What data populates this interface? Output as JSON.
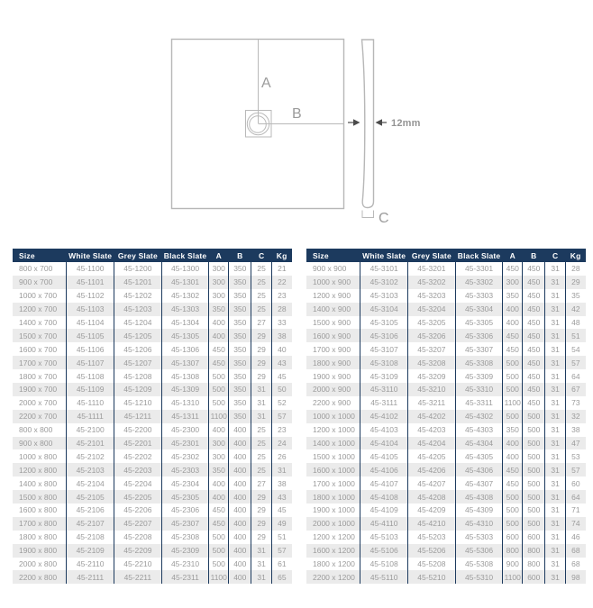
{
  "diagram": {
    "labels": {
      "a": "A",
      "b": "B",
      "c": "C",
      "thickness": "12mm"
    }
  },
  "colors": {
    "header_bg": "#1c3a5e",
    "header_text": "#ffffff",
    "body_text": "#9b9b9b",
    "row_stripe": "#ebebeb",
    "column_divider": "#1c3a5e",
    "diagram_line": "#b7b7b7",
    "diagram_label": "#9b9b9b",
    "arrow": "#4b4b4b"
  },
  "tables": {
    "headers": [
      "Size",
      "White Slate",
      "Grey Slate",
      "Black Slate",
      "A",
      "B",
      "C",
      "Kg"
    ],
    "left_rows": [
      [
        "800 x 700",
        "45-1100",
        "45-1200",
        "45-1300",
        "300",
        "350",
        "25",
        "21"
      ],
      [
        "900 x 700",
        "45-1101",
        "45-1201",
        "45-1301",
        "300",
        "350",
        "25",
        "22"
      ],
      [
        "1000 x 700",
        "45-1102",
        "45-1202",
        "45-1302",
        "300",
        "350",
        "25",
        "23"
      ],
      [
        "1200 x 700",
        "45-1103",
        "45-1203",
        "45-1303",
        "350",
        "350",
        "25",
        "28"
      ],
      [
        "1400 x 700",
        "45-1104",
        "45-1204",
        "45-1304",
        "400",
        "350",
        "27",
        "33"
      ],
      [
        "1500 x 700",
        "45-1105",
        "45-1205",
        "45-1305",
        "400",
        "350",
        "29",
        "38"
      ],
      [
        "1600 x 700",
        "45-1106",
        "45-1206",
        "45-1306",
        "450",
        "350",
        "29",
        "40"
      ],
      [
        "1700 x 700",
        "45-1107",
        "45-1207",
        "45-1307",
        "450",
        "350",
        "29",
        "43"
      ],
      [
        "1800 x 700",
        "45-1108",
        "45-1208",
        "45-1308",
        "500",
        "350",
        "29",
        "45"
      ],
      [
        "1900 x 700",
        "45-1109",
        "45-1209",
        "45-1309",
        "500",
        "350",
        "31",
        "50"
      ],
      [
        "2000 x 700",
        "45-1110",
        "45-1210",
        "45-1310",
        "500",
        "350",
        "31",
        "52"
      ],
      [
        "2200 x 700",
        "45-1111",
        "45-1211",
        "45-1311",
        "1100",
        "350",
        "31",
        "57"
      ],
      [
        "800 x 800",
        "45-2100",
        "45-2200",
        "45-2300",
        "400",
        "400",
        "25",
        "23"
      ],
      [
        "900 x 800",
        "45-2101",
        "45-2201",
        "45-2301",
        "300",
        "400",
        "25",
        "24"
      ],
      [
        "1000 x 800",
        "45-2102",
        "45-2202",
        "45-2302",
        "300",
        "400",
        "25",
        "26"
      ],
      [
        "1200 x 800",
        "45-2103",
        "45-2203",
        "45-2303",
        "350",
        "400",
        "25",
        "31"
      ],
      [
        "1400 x 800",
        "45-2104",
        "45-2204",
        "45-2304",
        "400",
        "400",
        "27",
        "38"
      ],
      [
        "1500 x 800",
        "45-2105",
        "45-2205",
        "45-2305",
        "400",
        "400",
        "29",
        "43"
      ],
      [
        "1600 x 800",
        "45-2106",
        "45-2206",
        "45-2306",
        "450",
        "400",
        "29",
        "45"
      ],
      [
        "1700 x 800",
        "45-2107",
        "45-2207",
        "45-2307",
        "450",
        "400",
        "29",
        "49"
      ],
      [
        "1800 x 800",
        "45-2108",
        "45-2208",
        "45-2308",
        "500",
        "400",
        "29",
        "51"
      ],
      [
        "1900 x 800",
        "45-2109",
        "45-2209",
        "45-2309",
        "500",
        "400",
        "31",
        "57"
      ],
      [
        "2000 x 800",
        "45-2110",
        "45-2210",
        "45-2310",
        "500",
        "400",
        "31",
        "61"
      ],
      [
        "2200 x 800",
        "45-2111",
        "45-2211",
        "45-2311",
        "1100",
        "400",
        "31",
        "65"
      ]
    ],
    "right_rows": [
      [
        "900 x 900",
        "45-3101",
        "45-3201",
        "45-3301",
        "450",
        "450",
        "31",
        "28"
      ],
      [
        "1000 x 900",
        "45-3102",
        "45-3202",
        "45-3302",
        "300",
        "450",
        "31",
        "29"
      ],
      [
        "1200 x 900",
        "45-3103",
        "45-3203",
        "45-3303",
        "350",
        "450",
        "31",
        "35"
      ],
      [
        "1400 x 900",
        "45-3104",
        "45-3204",
        "45-3304",
        "400",
        "450",
        "31",
        "42"
      ],
      [
        "1500 x 900",
        "45-3105",
        "45-3205",
        "45-3305",
        "400",
        "450",
        "31",
        "48"
      ],
      [
        "1600 x 900",
        "45-3106",
        "45-3206",
        "45-3306",
        "450",
        "450",
        "31",
        "51"
      ],
      [
        "1700 x 900",
        "45-3107",
        "45-3207",
        "45-3307",
        "450",
        "450",
        "31",
        "54"
      ],
      [
        "1800 x 900",
        "45-3108",
        "45-3208",
        "45-3308",
        "500",
        "450",
        "31",
        "57"
      ],
      [
        "1900 x 900",
        "45-3109",
        "45-3209",
        "45-3309",
        "500",
        "450",
        "31",
        "64"
      ],
      [
        "2000 x 900",
        "45-3110",
        "45-3210",
        "45-3310",
        "500",
        "450",
        "31",
        "67"
      ],
      [
        "2200 x 900",
        "45-3111",
        "45-3211",
        "45-3311",
        "1100",
        "450",
        "31",
        "73"
      ],
      [
        "1000 x 1000",
        "45-4102",
        "45-4202",
        "45-4302",
        "500",
        "500",
        "31",
        "32"
      ],
      [
        "1200 x 1000",
        "45-4103",
        "45-4203",
        "45-4303",
        "350",
        "500",
        "31",
        "38"
      ],
      [
        "1400 x 1000",
        "45-4104",
        "45-4204",
        "45-4304",
        "400",
        "500",
        "31",
        "47"
      ],
      [
        "1500 x 1000",
        "45-4105",
        "45-4205",
        "45-4305",
        "400",
        "500",
        "31",
        "53"
      ],
      [
        "1600 x 1000",
        "45-4106",
        "45-4206",
        "45-4306",
        "450",
        "500",
        "31",
        "57"
      ],
      [
        "1700 x 1000",
        "45-4107",
        "45-4207",
        "45-4307",
        "450",
        "500",
        "31",
        "60"
      ],
      [
        "1800 x 1000",
        "45-4108",
        "45-4208",
        "45-4308",
        "500",
        "500",
        "31",
        "64"
      ],
      [
        "1900 x 1000",
        "45-4109",
        "45-4209",
        "45-4309",
        "500",
        "500",
        "31",
        "71"
      ],
      [
        "2000 x 1000",
        "45-4110",
        "45-4210",
        "45-4310",
        "500",
        "500",
        "31",
        "74"
      ],
      [
        "1200 x 1200",
        "45-5103",
        "45-5203",
        "45-5303",
        "600",
        "600",
        "31",
        "46"
      ],
      [
        "1600 x 1200",
        "45-5106",
        "45-5206",
        "45-5306",
        "800",
        "800",
        "31",
        "68"
      ],
      [
        "1800 x 1200",
        "45-5108",
        "45-5208",
        "45-5308",
        "900",
        "800",
        "31",
        "68"
      ],
      [
        "2200 x 1200",
        "45-5110",
        "45-5210",
        "45-5310",
        "1100",
        "600",
        "31",
        "98"
      ]
    ]
  }
}
